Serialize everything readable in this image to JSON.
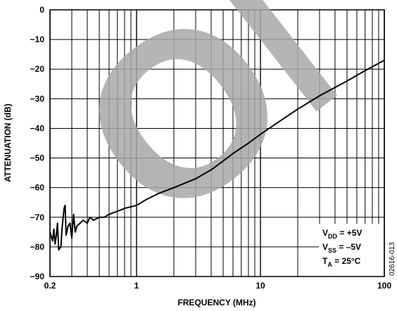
{
  "chart_data": {
    "type": "line",
    "watermark": "OBS",
    "ylabel": "ATTENUATION (dB)",
    "xlabel": "FREQUENCY (MHz)",
    "log_x": true,
    "grid": true,
    "xlim": [
      0.2,
      100
    ],
    "ylim": [
      -90,
      0
    ],
    "xticks": [
      0.2,
      1,
      10,
      100
    ],
    "yticks": [
      0,
      {
        "value": -10,
        "label": "−10"
      },
      {
        "value": -20,
        "label": "−20"
      },
      {
        "value": -30,
        "label": "−30"
      },
      {
        "value": -40,
        "label": "−40"
      },
      {
        "value": -50,
        "label": "−50"
      },
      {
        "value": -60,
        "label": "−60"
      },
      {
        "value": -70,
        "label": "−70"
      },
      {
        "value": -80,
        "label": "−80"
      },
      {
        "value": -90,
        "label": "−90"
      }
    ],
    "series": [
      {
        "color": "#000000",
        "x": [
          0.2,
          0.21,
          0.215,
          0.22,
          0.225,
          0.23,
          0.235,
          0.245,
          0.25,
          0.26,
          0.265,
          0.27,
          0.28,
          0.29,
          0.3,
          0.31,
          0.32,
          0.33,
          0.35,
          0.37,
          0.4,
          0.42,
          0.45,
          0.5,
          0.55,
          0.6,
          0.7,
          0.8,
          1,
          1.2,
          1.5,
          2,
          3,
          4,
          5,
          6,
          8,
          10,
          15,
          20,
          30,
          50,
          70,
          100
        ],
        "values": [
          -75,
          -78,
          -74,
          -79,
          -76,
          -72,
          -81,
          -80,
          -74,
          -67,
          -66,
          -76,
          -73,
          -72,
          -77,
          -69,
          -75,
          -73,
          -72,
          -71,
          -72,
          -70,
          -71,
          -70,
          -70,
          -69,
          -68,
          -67,
          -66,
          -64,
          -62,
          -60,
          -57,
          -54,
          -51,
          -48.5,
          -45,
          -42,
          -37,
          -33.5,
          -29,
          -24,
          -20.5,
          -17
        ]
      }
    ],
    "annotations": [
      {
        "main": "V",
        "sub": "DD",
        "rest": " = +5V"
      },
      {
        "main": "V",
        "sub": "SS",
        "rest": " = –5V"
      },
      {
        "main": "T",
        "sub": "A",
        "rest": " = 25°C"
      }
    ],
    "figure_id": "02616-013"
  }
}
